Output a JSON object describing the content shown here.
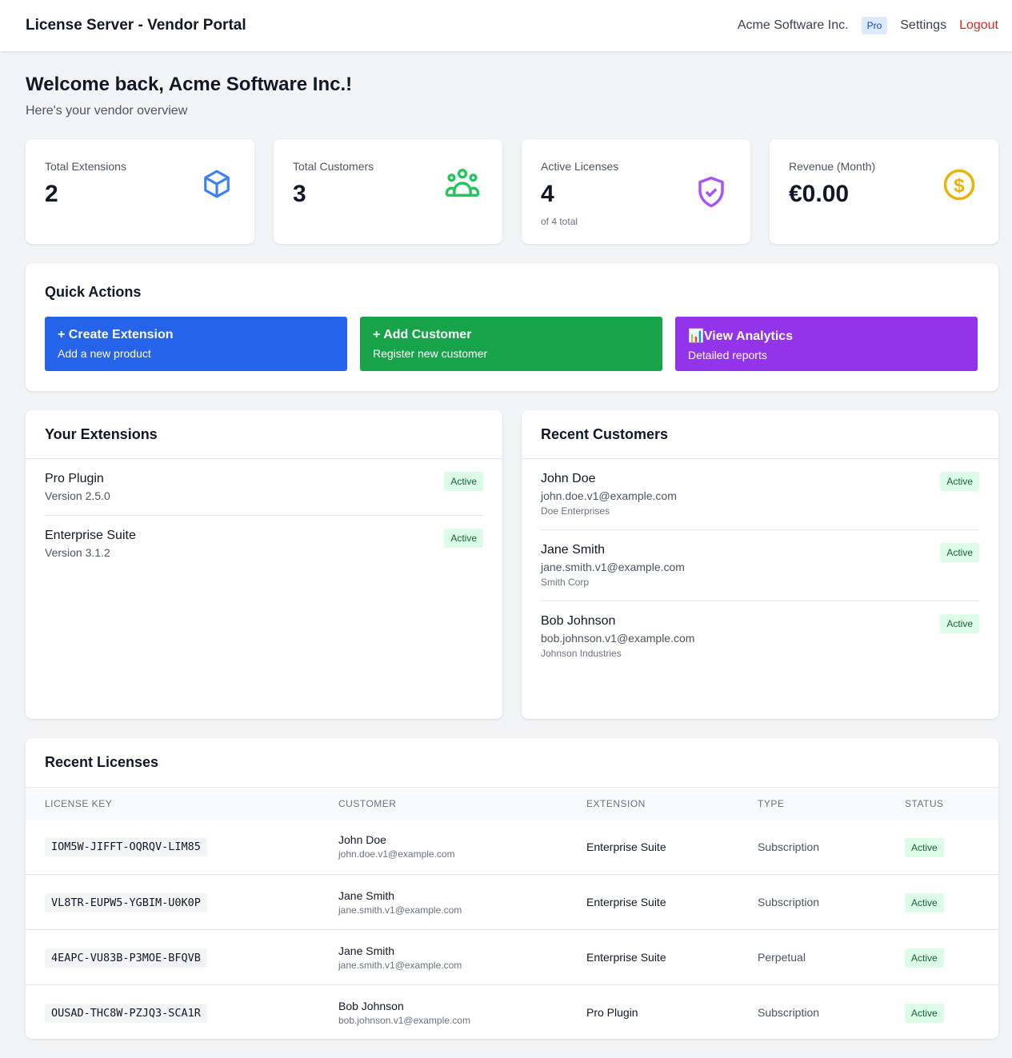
{
  "header": {
    "title": "License Server - Vendor Portal",
    "vendor": "Acme Software Inc.",
    "plan": "Pro",
    "settings": "Settings",
    "logout": "Logout"
  },
  "welcome": {
    "title": "Welcome back, Acme Software Inc.!",
    "subtitle": "Here's your vendor overview"
  },
  "stats": [
    {
      "label": "Total Extensions",
      "value": "2",
      "icon": "cube-icon",
      "color": "#3b82f6"
    },
    {
      "label": "Total Customers",
      "value": "3",
      "icon": "users-icon",
      "color": "#22c55e"
    },
    {
      "label": "Active Licenses",
      "value": "4",
      "note": "of 4 total",
      "icon": "shield-check-icon",
      "color": "#a855f7"
    },
    {
      "label": "Revenue (Month)",
      "value": "€0.00",
      "icon": "dollar-icon",
      "color": "#eab308"
    }
  ],
  "quick_actions": {
    "title": "Quick Actions",
    "items": [
      {
        "title": "+ Create Extension",
        "desc": "Add a new product",
        "color": "#2563eb"
      },
      {
        "title": "+ Add Customer",
        "desc": "Register new customer",
        "color": "#16a34a"
      },
      {
        "title": "📊View Analytics",
        "desc": "Detailed reports",
        "color": "#9333ea"
      }
    ]
  },
  "extensions": {
    "title": "Your Extensions",
    "items": [
      {
        "name": "Pro Plugin",
        "version": "Version 2.5.0",
        "status": "Active"
      },
      {
        "name": "Enterprise Suite",
        "version": "Version 3.1.2",
        "status": "Active"
      }
    ]
  },
  "customers": {
    "title": "Recent Customers",
    "items": [
      {
        "name": "John Doe",
        "email": "john.doe.v1@example.com",
        "company": "Doe Enterprises",
        "status": "Active"
      },
      {
        "name": "Jane Smith",
        "email": "jane.smith.v1@example.com",
        "company": "Smith Corp",
        "status": "Active"
      },
      {
        "name": "Bob Johnson",
        "email": "bob.johnson.v1@example.com",
        "company": "Johnson Industries",
        "status": "Active"
      }
    ]
  },
  "licenses": {
    "title": "Recent Licenses",
    "columns": [
      "LICENSE KEY",
      "CUSTOMER",
      "EXTENSION",
      "TYPE",
      "STATUS"
    ],
    "rows": [
      {
        "key": "IOM5W-JIFFT-OQRQV-LIM85",
        "customer": "John Doe",
        "email": "john.doe.v1@example.com",
        "extension": "Enterprise Suite",
        "type": "Subscription",
        "status": "Active"
      },
      {
        "key": "VL8TR-EUPW5-YGBIM-U0K0P",
        "customer": "Jane Smith",
        "email": "jane.smith.v1@example.com",
        "extension": "Enterprise Suite",
        "type": "Subscription",
        "status": "Active"
      },
      {
        "key": "4EAPC-VU83B-P3MOE-BFQVB",
        "customer": "Jane Smith",
        "email": "jane.smith.v1@example.com",
        "extension": "Enterprise Suite",
        "type": "Perpetual",
        "status": "Active"
      },
      {
        "key": "OUSAD-THC8W-PZJQ3-SCA1R",
        "customer": "Bob Johnson",
        "email": "bob.johnson.v1@example.com",
        "extension": "Pro Plugin",
        "type": "Subscription",
        "status": "Active"
      }
    ]
  }
}
